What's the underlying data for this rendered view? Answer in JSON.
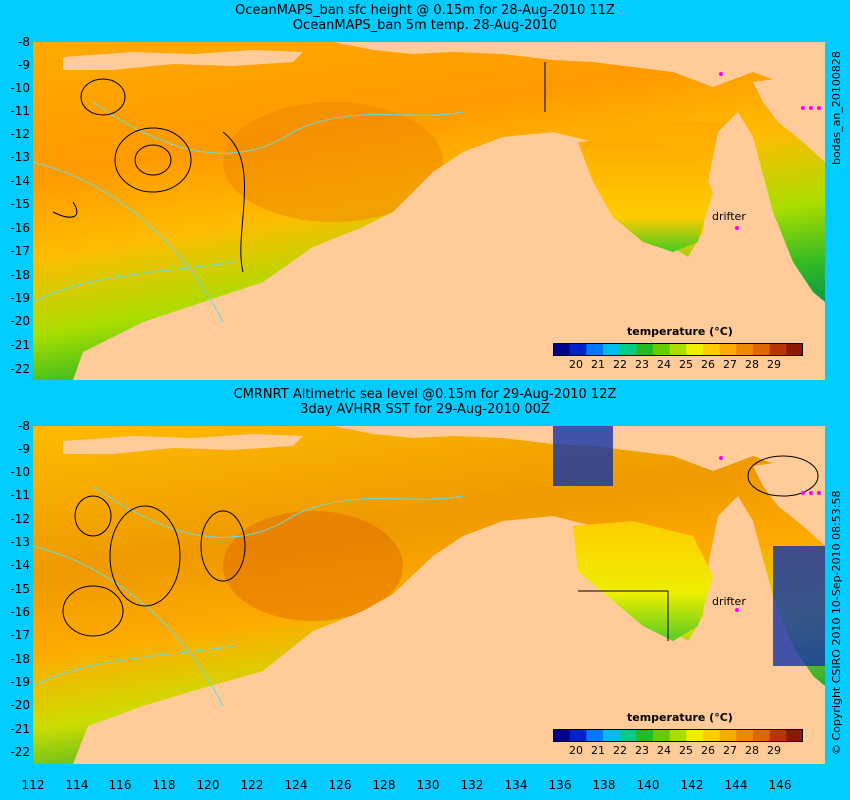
{
  "panels": [
    {
      "title_line1": "OceanMAPS_ban sfc height @ 0.15m for 28-Aug-2010 11Z",
      "title_line2": "OceanMAPS_ban 5m temp. 28-Aug-2010",
      "side_label": "bodas_an_20100828"
    },
    {
      "title_line1": "CMRNRT Altimetric sea level  @0.15m  for 29-Aug-2010 12Z",
      "title_line2": "3day AVHRR SST for 29-Aug-2010 00Z",
      "side_label": "© Copyright CSIRO 2010    10-Sep-2010 08:53:58"
    }
  ],
  "y_ticks": [
    "-8",
    "-9",
    "-10",
    "-11",
    "-12",
    "-13",
    "-14",
    "-15",
    "-16",
    "-17",
    "-18",
    "-19",
    "-20",
    "-21",
    "-22"
  ],
  "x_ticks": [
    "112",
    "114",
    "116",
    "118",
    "120",
    "122",
    "124",
    "126",
    "128",
    "130",
    "132",
    "134",
    "136",
    "138",
    "140",
    "142",
    "144",
    "146"
  ],
  "colorbar": {
    "title": "temperature (°C)",
    "ticks": [
      "20",
      "21",
      "22",
      "23",
      "24",
      "25",
      "26",
      "27",
      "28",
      "29"
    ],
    "colors": [
      "#00008b",
      "#0022cc",
      "#0077ff",
      "#00bbee",
      "#00cc88",
      "#22bb22",
      "#66cc00",
      "#aadd00",
      "#eeee00",
      "#ffcc00",
      "#ffaa00",
      "#ee8800",
      "#dd6600",
      "#bb3300",
      "#8b1a00"
    ]
  },
  "drifter_label": "drifter",
  "colors": {
    "background": "#00ccff",
    "land": "#ffcc99",
    "contour": "#000000",
    "isobath": "#66dddd",
    "drifter_marker": "#ff00ff"
  }
}
